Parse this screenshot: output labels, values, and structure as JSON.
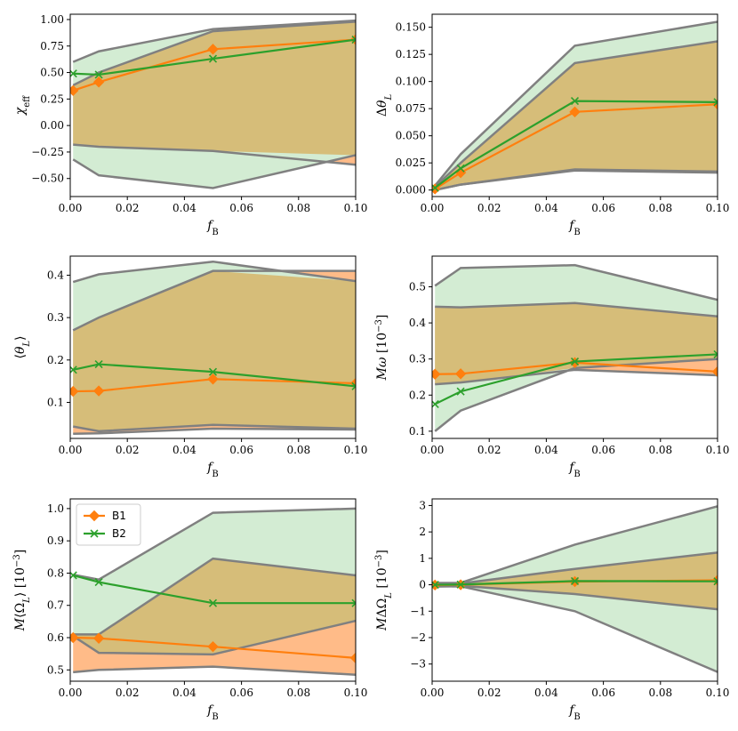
{
  "colors": {
    "B1": "#ff7f0e",
    "B2": "#2ca02c",
    "B1_fill": "#ffbb88",
    "B2_fill": "#d3ecd3",
    "overlap_fill": "#d6bd79",
    "envelope": "#808080"
  },
  "legend": {
    "B1": "B1",
    "B2": "B2"
  },
  "chart_data": [
    {
      "id": "chi_eff",
      "type": "line",
      "xlabel": "f_B",
      "ylabel": "χ_eff",
      "x": [
        0.001,
        0.01,
        0.05,
        0.1
      ],
      "xlim": [
        0,
        0.1
      ],
      "ylim": [
        -0.67,
        1.05
      ],
      "xticks": [
        "0.00",
        "0.02",
        "0.04",
        "0.06",
        "0.08",
        "0.10"
      ],
      "yticks": [
        "1.00",
        "0.75",
        "0.50",
        "0.25",
        "0.00",
        "−0.25",
        "−0.50"
      ],
      "ytick_values": [
        1.0,
        0.75,
        0.5,
        0.25,
        0.0,
        -0.25,
        -0.5
      ],
      "series": [
        {
          "name": "B1",
          "values": [
            0.33,
            0.41,
            0.72,
            0.81
          ],
          "band_low": [
            -0.18,
            -0.2,
            -0.24,
            -0.37
          ],
          "band_high": [
            0.38,
            0.5,
            0.89,
            0.98
          ]
        },
        {
          "name": "B2",
          "values": [
            0.49,
            0.48,
            0.63,
            0.81
          ],
          "band_low": [
            -0.32,
            -0.47,
            -0.59,
            -0.28
          ],
          "band_high": [
            0.6,
            0.7,
            0.91,
            0.99
          ]
        }
      ]
    },
    {
      "id": "delta_theta_L",
      "type": "line",
      "xlabel": "f_B",
      "ylabel": "Δθ_L",
      "x": [
        0.001,
        0.01,
        0.05,
        0.1
      ],
      "xlim": [
        0,
        0.1
      ],
      "ylim": [
        -0.006,
        0.162
      ],
      "xticks": [
        "0.00",
        "0.02",
        "0.04",
        "0.06",
        "0.08",
        "0.10"
      ],
      "yticks": [
        "0.150",
        "0.125",
        "0.100",
        "0.075",
        "0.050",
        "0.025",
        "0.000"
      ],
      "ytick_values": [
        0.15,
        0.125,
        0.1,
        0.075,
        0.05,
        0.025,
        0.0
      ],
      "series": [
        {
          "name": "B1",
          "values": [
            0.001,
            0.016,
            0.072,
            0.079
          ],
          "band_low": [
            0.0,
            0.005,
            0.018,
            0.016
          ],
          "band_high": [
            0.003,
            0.025,
            0.117,
            0.137
          ]
        },
        {
          "name": "B2",
          "values": [
            0.002,
            0.02,
            0.082,
            0.081
          ],
          "band_low": [
            0.0,
            0.005,
            0.019,
            0.017
          ],
          "band_high": [
            0.004,
            0.033,
            0.133,
            0.155
          ]
        }
      ]
    },
    {
      "id": "mean_theta_L",
      "type": "line",
      "xlabel": "f_B",
      "ylabel": "⟨θ_L⟩",
      "x": [
        0.001,
        0.01,
        0.05,
        0.1
      ],
      "xlim": [
        0,
        0.1
      ],
      "ylim": [
        0.015,
        0.445
      ],
      "xticks": [
        "0.00",
        "0.02",
        "0.04",
        "0.06",
        "0.08",
        "0.10"
      ],
      "yticks": [
        "0.4",
        "0.3",
        "0.2",
        "0.1"
      ],
      "ytick_values": [
        0.4,
        0.3,
        0.2,
        0.1
      ],
      "series": [
        {
          "name": "B1",
          "values": [
            0.126,
            0.127,
            0.155,
            0.145
          ],
          "band_low": [
            0.026,
            0.027,
            0.038,
            0.036
          ],
          "band_high": [
            0.27,
            0.3,
            0.41,
            0.41
          ]
        },
        {
          "name": "B2",
          "values": [
            0.177,
            0.19,
            0.172,
            0.138
          ],
          "band_low": [
            0.043,
            0.032,
            0.047,
            0.038
          ],
          "band_high": [
            0.384,
            0.402,
            0.432,
            0.386
          ]
        }
      ]
    },
    {
      "id": "M_omega",
      "type": "line",
      "xlabel": "f_B",
      "ylabel": "Mω [10^−3]",
      "x": [
        0.001,
        0.01,
        0.05,
        0.1
      ],
      "xlim": [
        0,
        0.1
      ],
      "ylim": [
        0.08,
        0.585
      ],
      "xticks": [
        "0.00",
        "0.02",
        "0.04",
        "0.06",
        "0.08",
        "0.10"
      ],
      "yticks": [
        "0.5",
        "0.4",
        "0.3",
        "0.2",
        "0.1"
      ],
      "ytick_values": [
        0.5,
        0.4,
        0.3,
        0.2,
        0.1
      ],
      "series": [
        {
          "name": "B1",
          "values": [
            0.258,
            0.259,
            0.29,
            0.265
          ],
          "band_low": [
            0.23,
            0.235,
            0.27,
            0.255
          ],
          "band_high": [
            0.445,
            0.443,
            0.455,
            0.418
          ]
        },
        {
          "name": "B2",
          "values": [
            0.175,
            0.21,
            0.293,
            0.313
          ],
          "band_low": [
            0.1,
            0.157,
            0.275,
            0.3
          ],
          "band_high": [
            0.503,
            0.552,
            0.56,
            0.464
          ]
        }
      ]
    },
    {
      "id": "M_mean_Omega_L",
      "type": "line",
      "xlabel": "f_B",
      "ylabel": "M⟨Ω_L⟩ [10^−3]",
      "x": [
        0.001,
        0.01,
        0.05,
        0.1
      ],
      "xlim": [
        0,
        0.1
      ],
      "ylim": [
        0.465,
        1.03
      ],
      "xticks": [
        "0.00",
        "0.02",
        "0.04",
        "0.06",
        "0.08",
        "0.10"
      ],
      "yticks": [
        "1.0",
        "0.9",
        "0.8",
        "0.7",
        "0.6",
        "0.5"
      ],
      "ytick_values": [
        1.0,
        0.9,
        0.8,
        0.7,
        0.6,
        0.5
      ],
      "legend_position": "top-left",
      "series": [
        {
          "name": "B1",
          "values": [
            0.6,
            0.598,
            0.572,
            0.537
          ],
          "band_low": [
            0.493,
            0.5,
            0.51,
            0.485
          ],
          "band_high": [
            0.61,
            0.61,
            0.845,
            0.793
          ]
        },
        {
          "name": "B2",
          "values": [
            0.793,
            0.772,
            0.707,
            0.707
          ],
          "band_low": [
            0.605,
            0.553,
            0.548,
            0.652
          ],
          "band_high": [
            0.795,
            0.78,
            0.987,
            1.0
          ]
        }
      ]
    },
    {
      "id": "M_delta_Omega_L",
      "type": "line",
      "xlabel": "f_B",
      "ylabel": "MΔΩ_L [10^−3]",
      "x": [
        0.001,
        0.01,
        0.05,
        0.1
      ],
      "xlim": [
        0,
        0.1
      ],
      "ylim": [
        -3.65,
        3.25
      ],
      "xticks": [
        "0.00",
        "0.02",
        "0.04",
        "0.06",
        "0.08",
        "0.10"
      ],
      "yticks": [
        "3",
        "2",
        "1",
        "0",
        "−1",
        "−2",
        "−3"
      ],
      "ytick_values": [
        3,
        2,
        1,
        0,
        -1,
        -2,
        -3
      ],
      "series": [
        {
          "name": "B1",
          "values": [
            -0.01,
            0.0,
            0.12,
            0.17
          ],
          "band_low": [
            -0.05,
            -0.04,
            -0.35,
            -0.93
          ],
          "band_high": [
            0.05,
            0.05,
            0.6,
            1.22
          ]
        },
        {
          "name": "B2",
          "values": [
            0.0,
            0.01,
            0.14,
            0.13
          ],
          "band_low": [
            -0.07,
            -0.06,
            -1.0,
            -3.3
          ],
          "band_high": [
            0.07,
            0.07,
            1.52,
            2.97
          ]
        }
      ]
    }
  ]
}
